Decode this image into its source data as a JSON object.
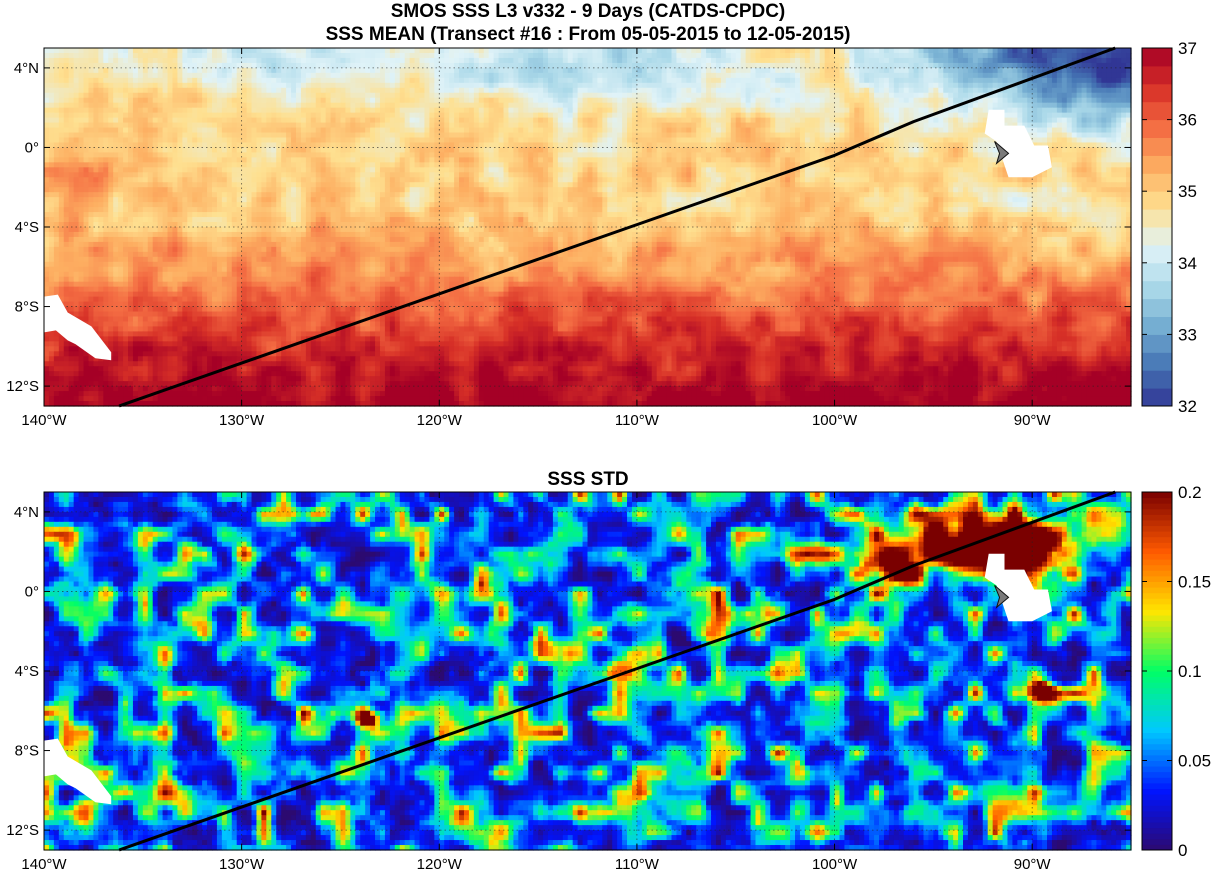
{
  "figure": {
    "title_line1": "SMOS SSS L3 v332 - 9 Days (CATDS-CPDC)"
  },
  "map_extent": {
    "lon_min": -140,
    "lon_max": -85,
    "lat_min": -13,
    "lat_max": 5
  },
  "x_ticks": [
    {
      "lon": -140,
      "label": "140°W"
    },
    {
      "lon": -130,
      "label": "130°W"
    },
    {
      "lon": -120,
      "label": "120°W"
    },
    {
      "lon": -110,
      "label": "110°W"
    },
    {
      "lon": -100,
      "label": "100°W"
    },
    {
      "lon": -90,
      "label": "90°W"
    }
  ],
  "y_ticks": [
    {
      "lat": 4,
      "label": "4°N"
    },
    {
      "lat": 0,
      "label": "0°"
    },
    {
      "lat": -4,
      "label": "4°S"
    },
    {
      "lat": -8,
      "label": "8°S"
    },
    {
      "lat": -12,
      "label": "12°S"
    }
  ],
  "transect": [
    {
      "lon": -136.2,
      "lat": -13.0
    },
    {
      "lon": -100.0,
      "lat": -0.4
    },
    {
      "lon": -96.0,
      "lat": 1.3
    },
    {
      "lon": -85.8,
      "lat": 5.0
    }
  ],
  "land_patches": [
    [
      [
        -140,
        -7.5
      ],
      [
        -139.3,
        -7.4
      ],
      [
        -138.8,
        -8.3
      ],
      [
        -137.6,
        -9.0
      ],
      [
        -136.6,
        -10.3
      ],
      [
        -136.6,
        -10.7
      ],
      [
        -137.4,
        -10.6
      ],
      [
        -138.4,
        -9.9
      ],
      [
        -138.8,
        -9.7
      ],
      [
        -139.4,
        -9.2
      ],
      [
        -140,
        -9.3
      ]
    ],
    [
      [
        -92.2,
        1.9
      ],
      [
        -91.4,
        1.9
      ],
      [
        -91.4,
        1.1
      ],
      [
        -90.4,
        1.1
      ],
      [
        -89.9,
        0.1
      ],
      [
        -89.2,
        0.1
      ],
      [
        -89.0,
        -1.0
      ],
      [
        -90.0,
        -1.5
      ],
      [
        -91.2,
        -1.5
      ],
      [
        -91.5,
        -0.6
      ],
      [
        -91.8,
        0.3
      ],
      [
        -92.4,
        0.7
      ]
    ]
  ],
  "marker": {
    "lon": -91.6,
    "lat": -0.2
  },
  "panels": [
    {
      "id": "mean",
      "title": "SSS MEAN (Transect #16 : From 05-05-2015 to 12-05-2015)",
      "variable": "SSS",
      "colormap": "blue-white-red",
      "colorbar": {
        "min": 32,
        "max": 37,
        "ticks": [
          "32",
          "33",
          "34",
          "35",
          "36",
          "37"
        ]
      }
    },
    {
      "id": "std",
      "title": "SSS STD",
      "variable": "SSS STD",
      "colormap": "jet",
      "colorbar": {
        "min": 0,
        "max": 0.2,
        "ticks": [
          "0",
          "0.05",
          "0.1",
          "0.15",
          "0.2"
        ]
      }
    }
  ],
  "colors": {
    "mean_scale": [
      "#313695",
      "#4575b4",
      "#74add1",
      "#abd9e9",
      "#e0f3f8",
      "#fee090",
      "#fdae61",
      "#f46d43",
      "#d73027",
      "#a50026"
    ],
    "std_scale": [
      "#2c0a70",
      "#0014ff",
      "#00c8ff",
      "#00ff66",
      "#ffe600",
      "#ff5a00",
      "#7a0000"
    ],
    "transect": "#000000",
    "land": "#ffffff",
    "marker": "#7a7a7a"
  }
}
